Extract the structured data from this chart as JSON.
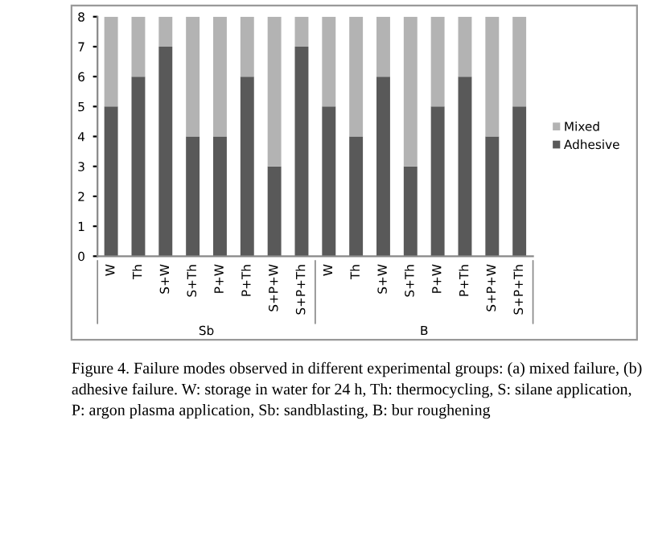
{
  "chart_data": {
    "type": "bar",
    "stacked": true,
    "categories": [
      "W",
      "Th",
      "S+W",
      "S+Th",
      "P+W",
      "P+Th",
      "S+P+W",
      "S+P+Th",
      "W",
      "Th",
      "S+W",
      "S+Th",
      "P+W",
      "P+Th",
      "S+P+W",
      "S+P+Th"
    ],
    "series": [
      {
        "name": "Adhesive",
        "color": "#595959",
        "values": [
          5,
          6,
          7,
          4,
          4,
          6,
          3,
          7,
          5,
          4,
          6,
          3,
          5,
          6,
          4,
          5
        ]
      },
      {
        "name": "Mixed",
        "color": "#b3b3b3",
        "values": [
          3,
          2,
          1,
          4,
          4,
          2,
          5,
          1,
          3,
          4,
          2,
          5,
          3,
          2,
          4,
          3
        ]
      }
    ],
    "ylim": [
      0,
      8
    ],
    "yticks": [
      0,
      1,
      2,
      3,
      4,
      5,
      6,
      7,
      8
    ],
    "grid": false,
    "legend": "right",
    "annotations": [
      "Sb",
      "B",
      "Figure 4. Failure modes observed in different experimental groups: (a) mixed failure, (b) adhesive failure. W: storage in water for 24 h, Th: thermocycling, S: silane application, P: argon plasma application, Sb: sandblasting, B: bur roughening"
    ]
  }
}
